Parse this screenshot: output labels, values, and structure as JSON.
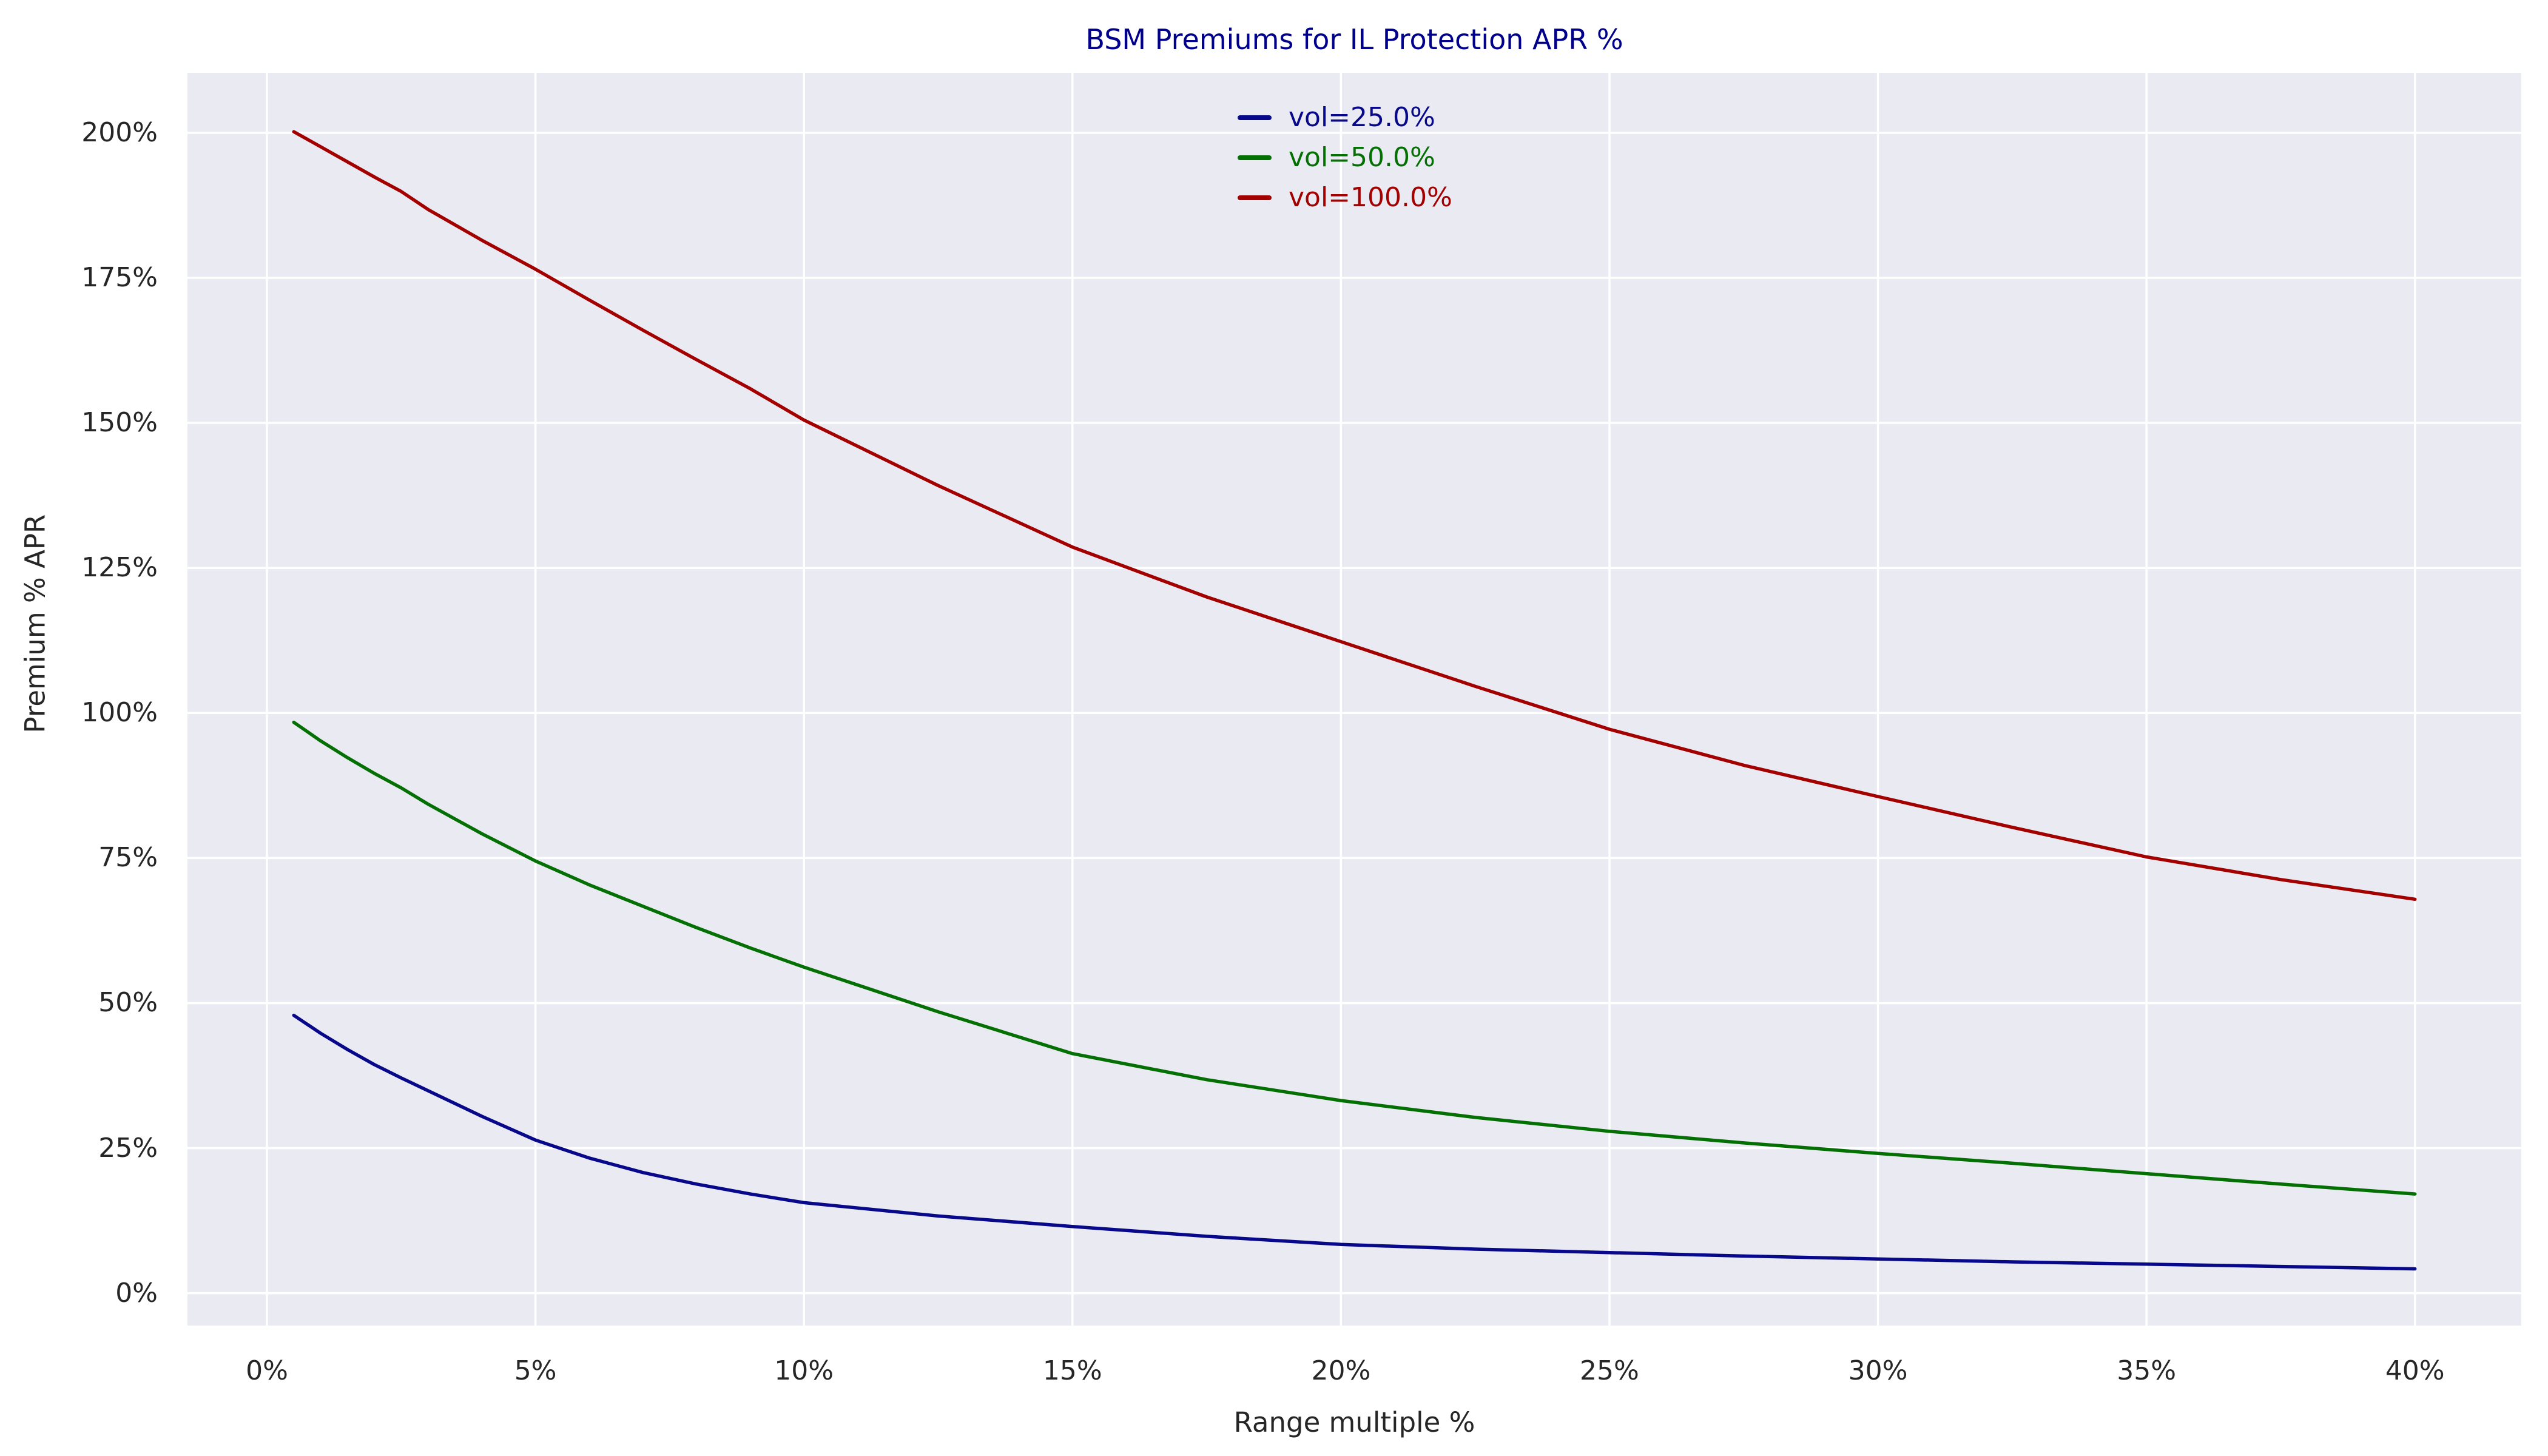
{
  "figure": {
    "title": "BSM Premiums for IL Protection APR %",
    "title_color": "#00008B"
  },
  "chart_data": {
    "type": "line",
    "title": "BSM Premiums for IL Protection APR %",
    "xlabel": "Range multiple %",
    "ylabel": "Premium % APR",
    "grid": true,
    "background_color": "#EAEAF2",
    "grid_color": "#FFFFFF",
    "text_color": "#262626",
    "xlim": [
      -1.48,
      41.98
    ],
    "ylim": [
      -5.58,
      210.35
    ],
    "x_ticks": [
      0,
      5,
      10,
      15,
      20,
      25,
      30,
      35,
      40
    ],
    "x_tick_labels": [
      "0%",
      "5%",
      "10%",
      "15%",
      "20%",
      "25%",
      "30%",
      "35%",
      "40%"
    ],
    "y_ticks": [
      0,
      25,
      50,
      75,
      100,
      125,
      150,
      175,
      200
    ],
    "y_tick_labels": [
      "0%",
      "25%",
      "50%",
      "75%",
      "100%",
      "125%",
      "150%",
      "175%",
      "200%"
    ],
    "legend_position": "upper center",
    "x": [
      0.5,
      1,
      1.5,
      2,
      2.5,
      3,
      4,
      5,
      6,
      7,
      8,
      9,
      10,
      12.5,
      15,
      17.5,
      20,
      22.5,
      25,
      27.5,
      30,
      32.5,
      35,
      37.5,
      40
    ],
    "series": [
      {
        "name": "vol=25.0%",
        "color": "#08088A",
        "values": [
          47.9,
          44.8,
          42.0,
          39.4,
          37.1,
          34.9,
          30.5,
          26.4,
          23.3,
          20.8,
          18.8,
          17.1,
          15.6,
          13.3,
          11.5,
          9.8,
          8.4,
          7.6,
          7.0,
          6.4,
          5.9,
          5.4,
          5.0,
          4.6,
          4.2
        ]
      },
      {
        "name": "vol=50.0%",
        "color": "#047004",
        "values": [
          98.4,
          95.2,
          92.3,
          89.6,
          87.1,
          84.3,
          79.2,
          74.5,
          70.4,
          66.7,
          63.0,
          59.5,
          56.2,
          48.5,
          41.3,
          36.8,
          33.2,
          30.3,
          27.9,
          25.9,
          24.1,
          22.4,
          20.6,
          18.8,
          17.1
        ]
      },
      {
        "name": "vol=100.0%",
        "color": "#A30000",
        "values": [
          200.2,
          197.6,
          195.0,
          192.4,
          189.9,
          186.8,
          181.5,
          176.5,
          171.2,
          166.0,
          160.9,
          155.9,
          150.5,
          139.2,
          128.6,
          120.0,
          112.3,
          104.6,
          97.2,
          91.0,
          85.6,
          80.3,
          75.2,
          71.3,
          67.9
        ]
      }
    ]
  }
}
